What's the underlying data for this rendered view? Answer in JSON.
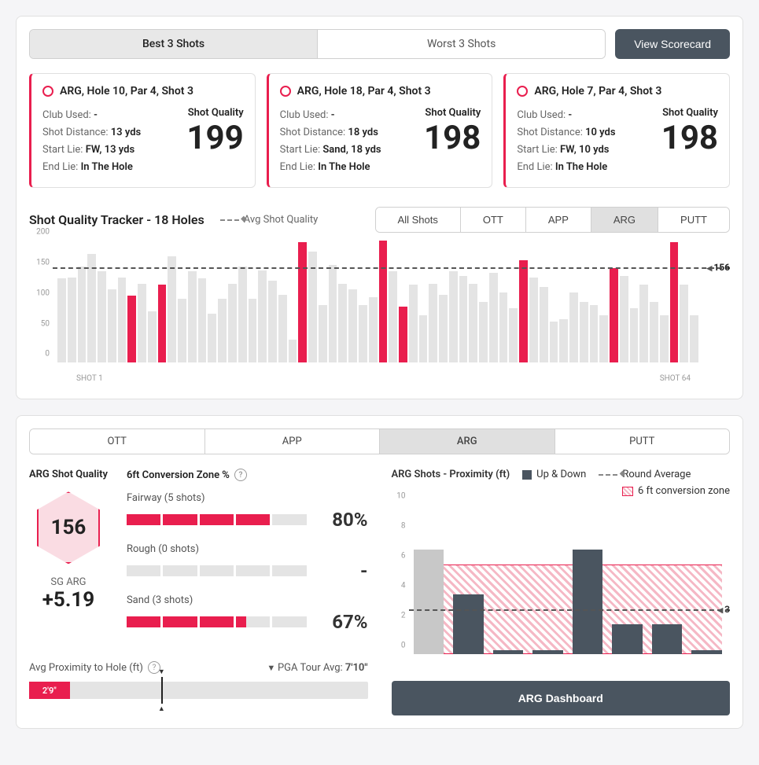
{
  "colors": {
    "accent": "#e91e4e",
    "bar_gray": "#e4e4e4",
    "dark_bar": "#4a5560",
    "light_bar": "#c8c8c8"
  },
  "top": {
    "tabs": [
      "Best 3 Shots",
      "Worst 3 Shots"
    ],
    "active_tab": 0,
    "view_scorecard": "View Scorecard"
  },
  "shot_cards": [
    {
      "title": "ARG, Hole 10, Par 4, Shot 3",
      "club": "-",
      "dist": "13 yds",
      "start": "FW, 13 yds",
      "end": "In The Hole",
      "sq": "199"
    },
    {
      "title": "ARG, Hole 18, Par 4, Shot 3",
      "club": "-",
      "dist": "18 yds",
      "start": "Sand, 18 yds",
      "end": "In The Hole",
      "sq": "198"
    },
    {
      "title": "ARG, Hole 7, Par 4, Shot 3",
      "club": "-",
      "dist": "10 yds",
      "start": "FW, 10 yds",
      "end": "In The Hole",
      "sq": "198"
    }
  ],
  "labels": {
    "club_used": "Club Used: ",
    "shot_distance": "Shot Distance: ",
    "start_lie": "Start Lie: ",
    "end_lie": "End Lie: ",
    "shot_quality": "Shot Quality"
  },
  "tracker": {
    "title": "Shot Quality Tracker - 18 Holes",
    "avg_label": "Avg Shot Quality",
    "tabs": [
      "All Shots",
      "OTT",
      "APP",
      "ARG",
      "PUTT"
    ],
    "active_tab": 3,
    "ymax": 200,
    "yticks": [
      0,
      50,
      100,
      150,
      200
    ],
    "avg_value": 156,
    "x_first": "SHOT 1",
    "x_last": "SHOT 64",
    "bars": [
      {
        "v": 138,
        "hl": false
      },
      {
        "v": 140,
        "hl": false
      },
      {
        "v": 158,
        "hl": false
      },
      {
        "v": 178,
        "hl": false
      },
      {
        "v": 150,
        "hl": false
      },
      {
        "v": 120,
        "hl": false
      },
      {
        "v": 140,
        "hl": false
      },
      {
        "v": 110,
        "hl": true
      },
      {
        "v": 130,
        "hl": false
      },
      {
        "v": 85,
        "hl": false
      },
      {
        "v": 128,
        "hl": true
      },
      {
        "v": 175,
        "hl": false
      },
      {
        "v": 105,
        "hl": false
      },
      {
        "v": 150,
        "hl": false
      },
      {
        "v": 138,
        "hl": false
      },
      {
        "v": 80,
        "hl": false
      },
      {
        "v": 105,
        "hl": false
      },
      {
        "v": 130,
        "hl": false
      },
      {
        "v": 158,
        "hl": false
      },
      {
        "v": 105,
        "hl": false
      },
      {
        "v": 152,
        "hl": false
      },
      {
        "v": 135,
        "hl": false
      },
      {
        "v": 112,
        "hl": false
      },
      {
        "v": 38,
        "hl": false
      },
      {
        "v": 198,
        "hl": true
      },
      {
        "v": 182,
        "hl": false
      },
      {
        "v": 95,
        "hl": false
      },
      {
        "v": 160,
        "hl": false
      },
      {
        "v": 130,
        "hl": false
      },
      {
        "v": 120,
        "hl": false
      },
      {
        "v": 95,
        "hl": false
      },
      {
        "v": 108,
        "hl": false
      },
      {
        "v": 200,
        "hl": true
      },
      {
        "v": 150,
        "hl": false
      },
      {
        "v": 92,
        "hl": true
      },
      {
        "v": 128,
        "hl": false
      },
      {
        "v": 78,
        "hl": false
      },
      {
        "v": 130,
        "hl": false
      },
      {
        "v": 112,
        "hl": false
      },
      {
        "v": 150,
        "hl": false
      },
      {
        "v": 142,
        "hl": false
      },
      {
        "v": 130,
        "hl": false
      },
      {
        "v": 100,
        "hl": false
      },
      {
        "v": 148,
        "hl": false
      },
      {
        "v": 115,
        "hl": false
      },
      {
        "v": 90,
        "hl": false
      },
      {
        "v": 168,
        "hl": true
      },
      {
        "v": 140,
        "hl": false
      },
      {
        "v": 125,
        "hl": false
      },
      {
        "v": 68,
        "hl": false
      },
      {
        "v": 72,
        "hl": false
      },
      {
        "v": 115,
        "hl": false
      },
      {
        "v": 100,
        "hl": false
      },
      {
        "v": 95,
        "hl": false
      },
      {
        "v": 78,
        "hl": false
      },
      {
        "v": 155,
        "hl": true
      },
      {
        "v": 142,
        "hl": false
      },
      {
        "v": 90,
        "hl": false
      },
      {
        "v": 128,
        "hl": false
      },
      {
        "v": 100,
        "hl": false
      },
      {
        "v": 78,
        "hl": false
      },
      {
        "v": 198,
        "hl": true
      },
      {
        "v": 128,
        "hl": false
      },
      {
        "v": 78,
        "hl": false
      }
    ]
  },
  "lower": {
    "tabs": [
      "OTT",
      "APP",
      "ARG",
      "PUTT"
    ],
    "active_tab": 2,
    "left_title": "ARG Shot Quality",
    "conv_title": "6ft Conversion Zone %",
    "hex_value": "156",
    "sg_label": "SG ARG",
    "sg_value": "+5.19",
    "conv_rows": [
      {
        "label": "Fairway (5 shots)",
        "fill": 4,
        "total": 5,
        "pct": "80%"
      },
      {
        "label": "Rough (0 shots)",
        "fill": 0,
        "total": 5,
        "pct": "-"
      },
      {
        "label": "Sand (3 shots)",
        "fill": 3.3,
        "total": 5,
        "pct": "67%"
      }
    ],
    "avg_prox_label": "Avg Proximity to Hole (ft)",
    "pga_label": "PGA Tour Avg:",
    "pga_value": "7'10\"",
    "prox_value": "2'9\"",
    "prox_fill_pct": 12,
    "prox_marker_pct": 39,
    "right_title": "ARG Shots - Proximity (ft)",
    "legend_updown": "Up & Down",
    "legend_roundavg": "Round Average",
    "legend_zone": "6 ft conversion zone",
    "prox_ymax": 10,
    "prox_yticks": [
      0,
      2,
      4,
      6,
      8,
      10
    ],
    "prox_zone_top": 6,
    "prox_avg": 3,
    "prox_bars": [
      {
        "v": 7,
        "gray": true
      },
      {
        "v": 4,
        "gray": false
      },
      {
        "v": 0.3,
        "gray": false
      },
      {
        "v": 0.3,
        "gray": false
      },
      {
        "v": 7,
        "gray": false
      },
      {
        "v": 2,
        "gray": false
      },
      {
        "v": 2,
        "gray": false
      },
      {
        "v": 0.3,
        "gray": false
      }
    ],
    "dashboard_btn": "ARG Dashboard"
  }
}
